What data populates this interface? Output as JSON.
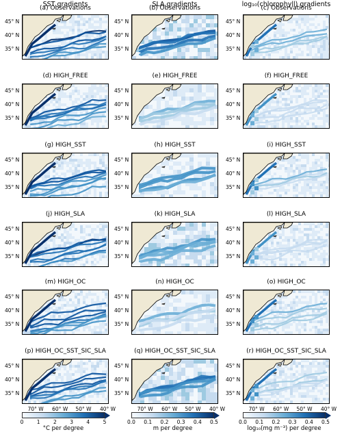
{
  "chart_data": {
    "type": "heatmap",
    "columns": [
      {
        "title": "SST gradients"
      },
      {
        "title": "SLA gradients"
      },
      {
        "title": "log₁₀(chlorophyll) gradients"
      }
    ],
    "panels": [
      [
        "(a) Observations",
        "(b) Observations",
        "(c) Observations"
      ],
      [
        "(d) HIGH_FREE",
        "(e) HIGH_FREE",
        "(f) HIGH_FREE"
      ],
      [
        "(g) HIGH_SST",
        "(h) HIGH_SST",
        "(i) HIGH_SST"
      ],
      [
        "(j) HIGH_SLA",
        "(k) HIGH_SLA",
        "(l) HIGH_SLA"
      ],
      [
        "(m) HIGH_OC",
        "(n) HIGH_OC",
        "(o) HIGH_OC"
      ],
      [
        "(p) HIGH_OC_SST_SIC_SLA",
        "(q) HIGH_OC_SST_SIC_SLA",
        "(r) HIGH_OC_SST_SIC_SLA"
      ]
    ],
    "yticks": [
      "45° N",
      "40° N",
      "35° N"
    ],
    "xticks": [
      "70° W",
      "60° W",
      "50° W",
      "40° W"
    ],
    "lat_range": [
      33,
      48
    ],
    "lon_range": [
      -78,
      -40
    ],
    "colorbars": [
      {
        "ticks": [
          "0",
          "1",
          "2",
          "3",
          "4",
          "5"
        ],
        "range": [
          0,
          5
        ],
        "label": "°C per degree",
        "colormap": "Blues",
        "extend": "max"
      },
      {
        "ticks": [
          "0.0",
          "0.1",
          "0.2",
          "0.3",
          "0.4",
          "0.5"
        ],
        "range": [
          0,
          0.5
        ],
        "label": "m per degree",
        "colormap": "Blues",
        "extend": "max"
      },
      {
        "ticks": [
          "0.0",
          "0.1",
          "0.2",
          "0.3",
          "0.4",
          "0.5"
        ],
        "range": [
          0,
          0.5
        ],
        "label": "log₁₀(mg m⁻³) per degree",
        "colormap": "Blues",
        "extend": "max"
      }
    ],
    "land_color": "#efe9d4",
    "colormap_dark": "#08306b"
  }
}
